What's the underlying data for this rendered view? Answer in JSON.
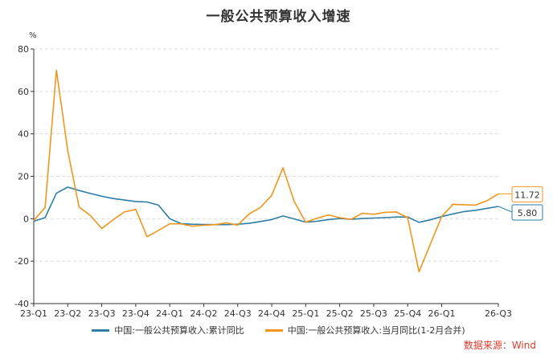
{
  "colors": {
    "series1": "#2e7ea6",
    "series2": "#f0961e",
    "grid": "#dcdcdc",
    "axis": "#333333",
    "source": "#e03a2a"
  },
  "chart_data": {
    "type": "line",
    "title": "一般公共预算收入增速",
    "ylabel": "%",
    "ylim": [
      -40,
      80
    ],
    "yticks": [
      -40,
      -20,
      0,
      20,
      40,
      60,
      80
    ],
    "grid": "horizontal-dashed",
    "legend": "bottom",
    "xticklabels": [
      "23-Q1",
      "23-Q2",
      "23-Q3",
      "23-Q4",
      "24-Q1",
      "24-Q2",
      "24-Q3",
      "24-Q4",
      "25-Q1",
      "25-Q2",
      "25-Q3",
      "25-Q4",
      "26-Q1",
      "26-Q3"
    ],
    "series": [
      {
        "name": "中国:一般公共预算收入:累计同比",
        "color": "#2e7ea6",
        "last_label": "5.80",
        "values": [
          -1.2,
          0.5,
          12.0,
          14.9,
          13.3,
          11.9,
          10.6,
          9.5,
          8.8,
          8.1,
          7.9,
          6.4,
          0,
          -2.3,
          -2.6,
          -2.7,
          -2.8,
          -2.8,
          -2.6,
          -2.2,
          -1.3,
          -0.4,
          1.3,
          -0.1,
          -1.6,
          -1.2,
          -0.4,
          0.1,
          -0.3,
          0.1,
          0.3,
          0.5,
          0.8,
          0.8,
          -1.7,
          -0.5,
          1.0,
          2.3,
          3.4,
          4.0,
          4.9,
          5.8
        ]
      },
      {
        "name": "中国:一般公共预算收入:当月同比(1-2月合并)",
        "color": "#f0961e",
        "last_label": "11.72",
        "values": [
          -0.9,
          5.3,
          70.0,
          32.0,
          5.5,
          1.5,
          -4.6,
          -0.5,
          3.2,
          4.4,
          -8.5,
          -5.5,
          -2.4,
          -2.4,
          -3.5,
          -3.1,
          -2.8,
          -1.9,
          -3.0,
          2.2,
          5.3,
          11.0,
          24.0,
          8.0,
          -1.6,
          0.2,
          1.8,
          0.5,
          -0.3,
          2.6,
          2.1,
          3.0,
          3.2,
          0.5,
          -25.0,
          -12.0,
          1.0,
          6.8,
          6.6,
          6.4,
          8.5,
          11.72
        ]
      }
    ]
  },
  "source_text": "数据来源：Wind"
}
